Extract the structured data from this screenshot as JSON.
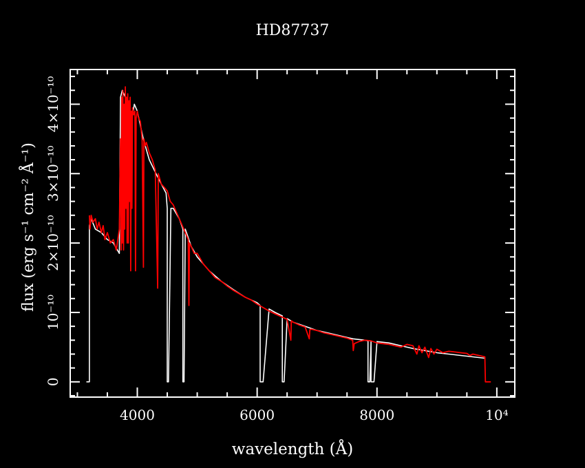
{
  "chart_data": {
    "type": "line",
    "title": "HD87737",
    "xlabel": "wavelength (Å)",
    "ylabel": "flux (erg s⁻¹ cm⁻² Å⁻¹)",
    "xlim": [
      2880,
      10300
    ],
    "ylim": [
      -2.2e-11,
      4.5e-10
    ],
    "x_ticks": [
      4000,
      6000,
      8000,
      10000
    ],
    "x_tick_labels": [
      "4000",
      "6000",
      "8000",
      "10⁴"
    ],
    "y_ticks": [
      0,
      1e-10,
      2e-10,
      3e-10,
      4e-10
    ],
    "y_tick_labels": [
      "0",
      "10⁻¹⁰",
      "2×10⁻¹⁰",
      "3×10⁻¹⁰",
      "4×10⁻¹⁰"
    ],
    "grid": false,
    "colors": {
      "background": "#000000",
      "axes": "#ffffff",
      "observed": "#ffffff",
      "model": "#ff0000"
    },
    "series": [
      {
        "color": "#ffffff",
        "x": [
          3150,
          3200,
          3200,
          3210,
          3230,
          3300,
          3400,
          3500,
          3600,
          3700,
          3720,
          3750,
          3800,
          3850,
          3900,
          3950,
          4000,
          4100,
          4200,
          4340,
          4400,
          4480,
          4500,
          4500,
          4510,
          4520,
          4560,
          4600,
          4700,
          4760,
          4760,
          4780,
          4800,
          4861,
          4900,
          5000,
          5200,
          5400,
          5600,
          5800,
          6000,
          6050,
          6050,
          6100,
          6200,
          6300,
          6420,
          6420,
          6450,
          6500,
          6600,
          6800,
          7000,
          7200,
          7400,
          7600,
          7800,
          7850,
          7850,
          7880,
          7900,
          7900,
          7950,
          8000,
          8200,
          8400,
          8600,
          8800,
          9000,
          9200,
          9400,
          9600,
          9800
        ],
        "y": [
          0,
          0,
          2.25e-10,
          2.3e-10,
          2.35e-10,
          2.2e-10,
          2.15e-10,
          2.05e-10,
          2e-10,
          1.85e-10,
          4.1e-10,
          4.2e-10,
          4.1e-10,
          3.9e-10,
          3.75e-10,
          4e-10,
          3.9e-10,
          3.5e-10,
          3.2e-10,
          2.95e-10,
          2.85e-10,
          2.72e-10,
          2.5e-10,
          0,
          0,
          0,
          2.5e-10,
          2.5e-10,
          2.35e-10,
          2.2e-10,
          0,
          0,
          2.2e-10,
          2.05e-10,
          1.95e-10,
          1.8e-10,
          1.6e-10,
          1.45e-10,
          1.33e-10,
          1.22e-10,
          1.14e-10,
          1.1e-10,
          0,
          0,
          1.05e-10,
          1e-10,
          9.5e-11,
          0,
          0,
          9.1e-11,
          8.6e-11,
          8e-11,
          7.4e-11,
          7e-11,
          6.6e-11,
          6.2e-11,
          6e-11,
          5.9e-11,
          0,
          0,
          5.8e-11,
          0,
          0,
          5.8e-11,
          5.6e-11,
          5.2e-11,
          4.8e-11,
          4.5e-11,
          4.2e-11,
          4e-11,
          3.8e-11,
          3.6e-11,
          3.4e-11
        ]
      },
      {
        "color": "#ff0000",
        "x": [
          3200,
          3210,
          3230,
          3260,
          3300,
          3330,
          3360,
          3400,
          3430,
          3460,
          3500,
          3550,
          3600,
          3650,
          3700,
          3720,
          3730,
          3740,
          3750,
          3760,
          3770,
          3780,
          3790,
          3800,
          3810,
          3820,
          3830,
          3840,
          3850,
          3860,
          3870,
          3880,
          3890,
          3900,
          3910,
          3920,
          3940,
          3960,
          3970,
          3980,
          4000,
          4020,
          4050,
          4080,
          4102,
          4110,
          4130,
          4150,
          4200,
          4250,
          4300,
          4340,
          4350,
          4400,
          4450,
          4500,
          4550,
          4600,
          4650,
          4700,
          4750,
          4800,
          4850,
          4861,
          4870,
          4900,
          4950,
          5000,
          5100,
          5200,
          5300,
          5400,
          5500,
          5600,
          5700,
          5800,
          5900,
          6000,
          6100,
          6200,
          6300,
          6400,
          6500,
          6563,
          6570,
          6600,
          6700,
          6800,
          6870,
          6880,
          6900,
          7000,
          7100,
          7200,
          7300,
          7400,
          7500,
          7594,
          7604,
          7620,
          7700,
          7800,
          7900,
          8000,
          8100,
          8200,
          8300,
          8400,
          8500,
          8600,
          8665,
          8700,
          8750,
          8800,
          8862,
          8900,
          8950,
          9000,
          9100,
          9200,
          9300,
          9400,
          9500,
          9550,
          9600,
          9700,
          9800,
          9810,
          9900
        ],
        "y": [
          2.4e-10,
          2.2e-10,
          2.4e-10,
          2.3e-10,
          2.35e-10,
          2.2e-10,
          2.3e-10,
          2.15e-10,
          2.25e-10,
          2.05e-10,
          2.15e-10,
          2e-10,
          2.05e-10,
          1.9e-10,
          2.2e-10,
          3.5e-10,
          1.9e-10,
          4.1e-10,
          2e-10,
          4.2e-10,
          1.9e-10,
          4e-10,
          2.2e-10,
          4.25e-10,
          2.5e-10,
          4.1e-10,
          2e-10,
          4.15e-10,
          2e-10,
          4.05e-10,
          2.6e-10,
          4.1e-10,
          1.6e-10,
          3.9e-10,
          2.5e-10,
          3.95e-10,
          3.85e-10,
          3.9e-10,
          1.6e-10,
          3.8e-10,
          3.9e-10,
          3.8e-10,
          3.75e-10,
          3.5e-10,
          1.65e-10,
          3.5e-10,
          3.4e-10,
          3.45e-10,
          3.3e-10,
          3.2e-10,
          3.05e-10,
          1.35e-10,
          3e-10,
          2.85e-10,
          2.8e-10,
          2.75e-10,
          2.6e-10,
          2.55e-10,
          2.45e-10,
          2.35e-10,
          2.25e-10,
          2.15e-10,
          2.05e-10,
          1.1e-10,
          2e-10,
          1.95e-10,
          1.85e-10,
          1.85e-10,
          1.7e-10,
          1.6e-10,
          1.5e-10,
          1.45e-10,
          1.38e-10,
          1.32e-10,
          1.27e-10,
          1.22e-10,
          1.18e-10,
          1.12e-10,
          1.07e-10,
          1.02e-10,
          9.8e-11,
          9.4e-11,
          9e-11,
          6e-11,
          8.8e-11,
          8.6e-11,
          8.2e-11,
          7.9e-11,
          6.2e-11,
          7.5e-11,
          7.6e-11,
          7.4e-11,
          7.1e-11,
          6.9e-11,
          6.7e-11,
          6.5e-11,
          6.3e-11,
          6e-11,
          4.5e-11,
          5.5e-11,
          5.8e-11,
          6e-11,
          5.9e-11,
          5.6e-11,
          5.5e-11,
          5.4e-11,
          5.2e-11,
          5e-11,
          5.4e-11,
          5.2e-11,
          4e-11,
          5.2e-11,
          4.2e-11,
          5e-11,
          3.5e-11,
          4.8e-11,
          4e-11,
          4.7e-11,
          4.2e-11,
          4.4e-11,
          4.3e-11,
          4.2e-11,
          4.1e-11,
          3.8e-11,
          4e-11,
          3.8e-11,
          3.6e-11,
          0.0,
          0.0
        ]
      }
    ]
  }
}
